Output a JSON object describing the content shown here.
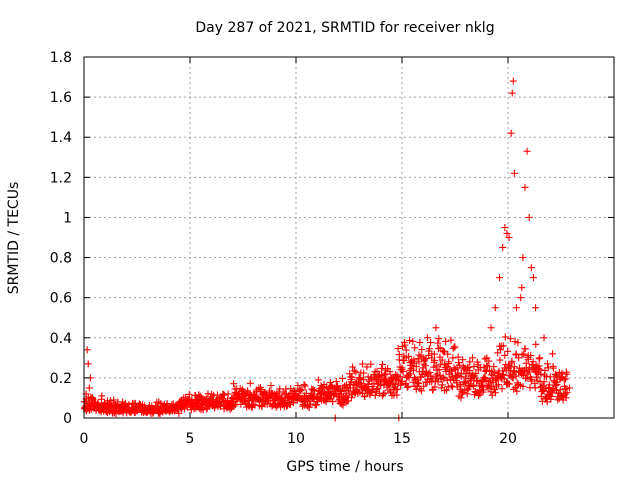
{
  "chart_data": {
    "type": "scatter",
    "title": "Day 287 of 2021, SRMTID for receiver nklg",
    "xlabel": "GPS time / hours",
    "ylabel": "SRMTID / TECUs",
    "xlim": [
      0,
      25
    ],
    "ylim": [
      0,
      1.8
    ],
    "xticks": [
      0,
      5,
      10,
      15,
      20
    ],
    "yticks": [
      0,
      0.2,
      0.4,
      0.6,
      0.8,
      1,
      1.2,
      1.4,
      1.6,
      1.8
    ],
    "xtick_labels": [
      "0",
      "5",
      "10",
      "15",
      "20"
    ],
    "ytick_labels": [
      "0",
      "0.2",
      "0.4",
      "0.6",
      "0.8",
      "1",
      "1.2",
      "1.4",
      "1.6",
      "1.8"
    ],
    "grid": true,
    "marker_color": "#ff0000",
    "series": [
      {
        "name": "SRMTID",
        "x": [
          0.05,
          0.1,
          0.15,
          0.2,
          0.25,
          0.3,
          0.4,
          0.5,
          0.6,
          0.7,
          0.8,
          1.0,
          1.2,
          1.4,
          1.6,
          1.8,
          2.0,
          2.3,
          2.6,
          2.9,
          3.2,
          3.5,
          3.8,
          4.1,
          4.3,
          4.5,
          4.7,
          5.0,
          5.3,
          5.6,
          6.0,
          6.4,
          6.8,
          7.2,
          7.6,
          8.0,
          8.4,
          8.8,
          9.2,
          9.6,
          10.0,
          10.4,
          10.8,
          11.2,
          11.6,
          11.85,
          12.2,
          12.6,
          13.0,
          13.4,
          13.8,
          14.2,
          14.6,
          14.85,
          15.0,
          15.2,
          15.4,
          15.6,
          15.8,
          16.0,
          16.2,
          16.4,
          16.6,
          16.8,
          17.0,
          17.2,
          17.4,
          17.6,
          17.8,
          18.0,
          18.2,
          18.4,
          18.6,
          18.8,
          19.0,
          19.2,
          19.4,
          19.6,
          19.75,
          19.85,
          19.95,
          20.05,
          20.15,
          20.2,
          20.25,
          20.3,
          20.4,
          20.5,
          20.6,
          20.65,
          20.7,
          20.8,
          20.9,
          21.0,
          21.1,
          21.2,
          21.3,
          21.5,
          21.7,
          21.9,
          22.1,
          22.3,
          22.5,
          22.7,
          22.9
        ],
        "y": [
          0.08,
          0.12,
          0.34,
          0.27,
          0.15,
          0.2,
          0.1,
          0.07,
          0.05,
          0.04,
          0.06,
          0.07,
          0.06,
          0.09,
          0.08,
          0.06,
          0.05,
          0.05,
          0.06,
          0.05,
          0.04,
          0.04,
          0.05,
          0.04,
          0.05,
          0.07,
          0.1,
          0.09,
          0.08,
          0.07,
          0.08,
          0.1,
          0.12,
          0.09,
          0.11,
          0.1,
          0.12,
          0.11,
          0.13,
          0.1,
          0.12,
          0.11,
          0.14,
          0.13,
          0.12,
          0.0,
          0.15,
          0.18,
          0.2,
          0.17,
          0.19,
          0.18,
          0.2,
          0.0,
          0.25,
          0.3,
          0.22,
          0.35,
          0.28,
          0.25,
          0.4,
          0.3,
          0.45,
          0.35,
          0.33,
          0.28,
          0.3,
          0.25,
          0.22,
          0.2,
          0.28,
          0.2,
          0.24,
          0.19,
          0.3,
          0.45,
          0.55,
          0.7,
          0.85,
          0.95,
          0.92,
          0.9,
          1.42,
          1.62,
          1.68,
          1.22,
          0.55,
          0.3,
          0.6,
          0.65,
          0.8,
          1.15,
          1.33,
          1.0,
          0.75,
          0.7,
          0.55,
          0.3,
          0.4,
          0.25,
          0.32,
          0.18,
          0.2,
          0.12,
          0.15
        ],
        "y_dense": [
          [
            0,
            1.0,
            0.03,
            0.12
          ],
          [
            1.0,
            4.5,
            0.02,
            0.09
          ],
          [
            4.5,
            7.0,
            0.04,
            0.13
          ],
          [
            7.0,
            11.0,
            0.05,
            0.18
          ],
          [
            11.0,
            12.5,
            0.06,
            0.2
          ],
          [
            12.5,
            14.8,
            0.1,
            0.28
          ],
          [
            14.8,
            17.5,
            0.12,
            0.42
          ],
          [
            17.5,
            19.5,
            0.1,
            0.32
          ],
          [
            19.5,
            21.5,
            0.12,
            0.42
          ],
          [
            21.5,
            22.8,
            0.06,
            0.3
          ]
        ]
      }
    ]
  }
}
